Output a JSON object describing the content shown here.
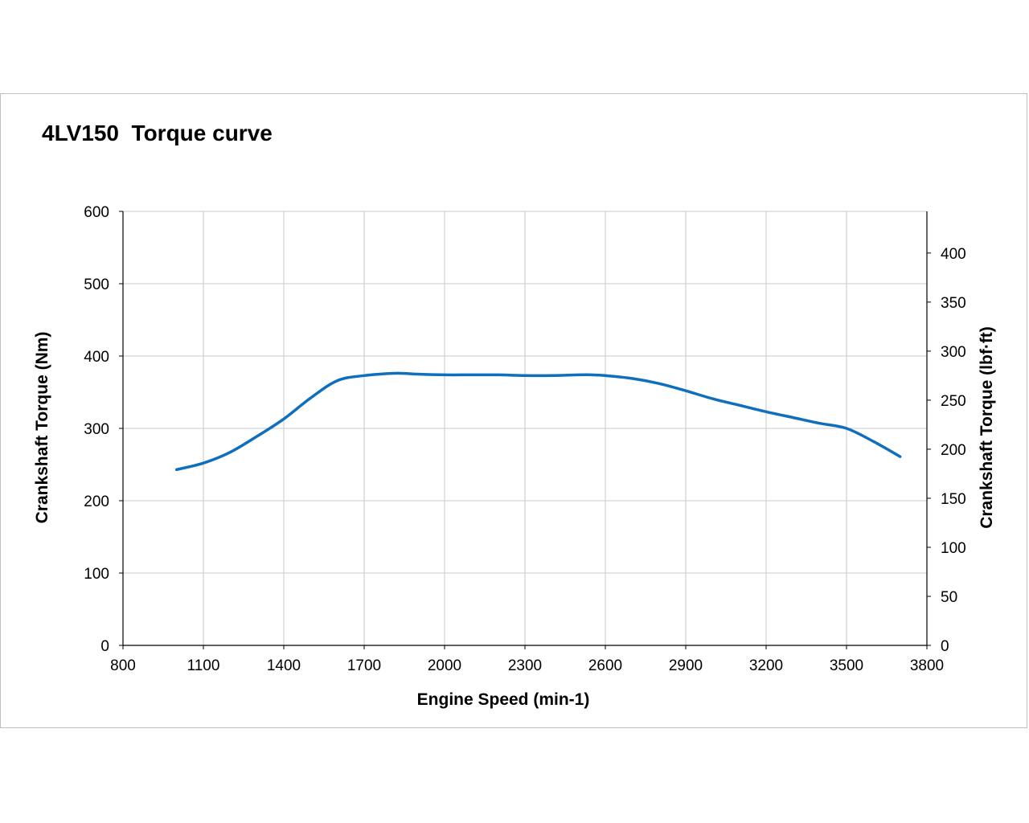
{
  "chart_data": {
    "type": "line",
    "title": "4LV150  Torque curve",
    "xlabel": "Engine Speed (min-1)",
    "ylabel": "Crankshaft  Torque (Nm)",
    "y2label": "Crankshaft  Torque (lbf·ft)",
    "xlim": [
      800,
      3800
    ],
    "ylim": [
      0,
      600
    ],
    "y2lim": [
      0,
      442.5
    ],
    "x_ticks": [
      "800",
      "1100",
      "1400",
      "1700",
      "2000",
      "2300",
      "2600",
      "2900",
      "3200",
      "3500",
      "3800"
    ],
    "y_ticks": [
      "0",
      "100",
      "200",
      "300",
      "400",
      "500",
      "600"
    ],
    "y2_ticks": [
      "0",
      "50",
      "100",
      "150",
      "200",
      "250",
      "300",
      "350",
      "400"
    ],
    "grid": true,
    "series": [
      {
        "color": "#0f6fbd",
        "x": [
          1000,
          1100,
          1200,
          1300,
          1400,
          1500,
          1600,
          1700,
          1800,
          1850,
          1900,
          2000,
          2100,
          2200,
          2300,
          2400,
          2500,
          2550,
          2600,
          2700,
          2800,
          2900,
          3000,
          3100,
          3200,
          3300,
          3400,
          3500,
          3600,
          3700
        ],
        "y": [
          243,
          252,
          267,
          289,
          313,
          342,
          366,
          373,
          376,
          376,
          375,
          374,
          374,
          374,
          373,
          373,
          374,
          374,
          373,
          369,
          362,
          352,
          341,
          332,
          323,
          315,
          307,
          300,
          282,
          261
        ]
      }
    ]
  }
}
